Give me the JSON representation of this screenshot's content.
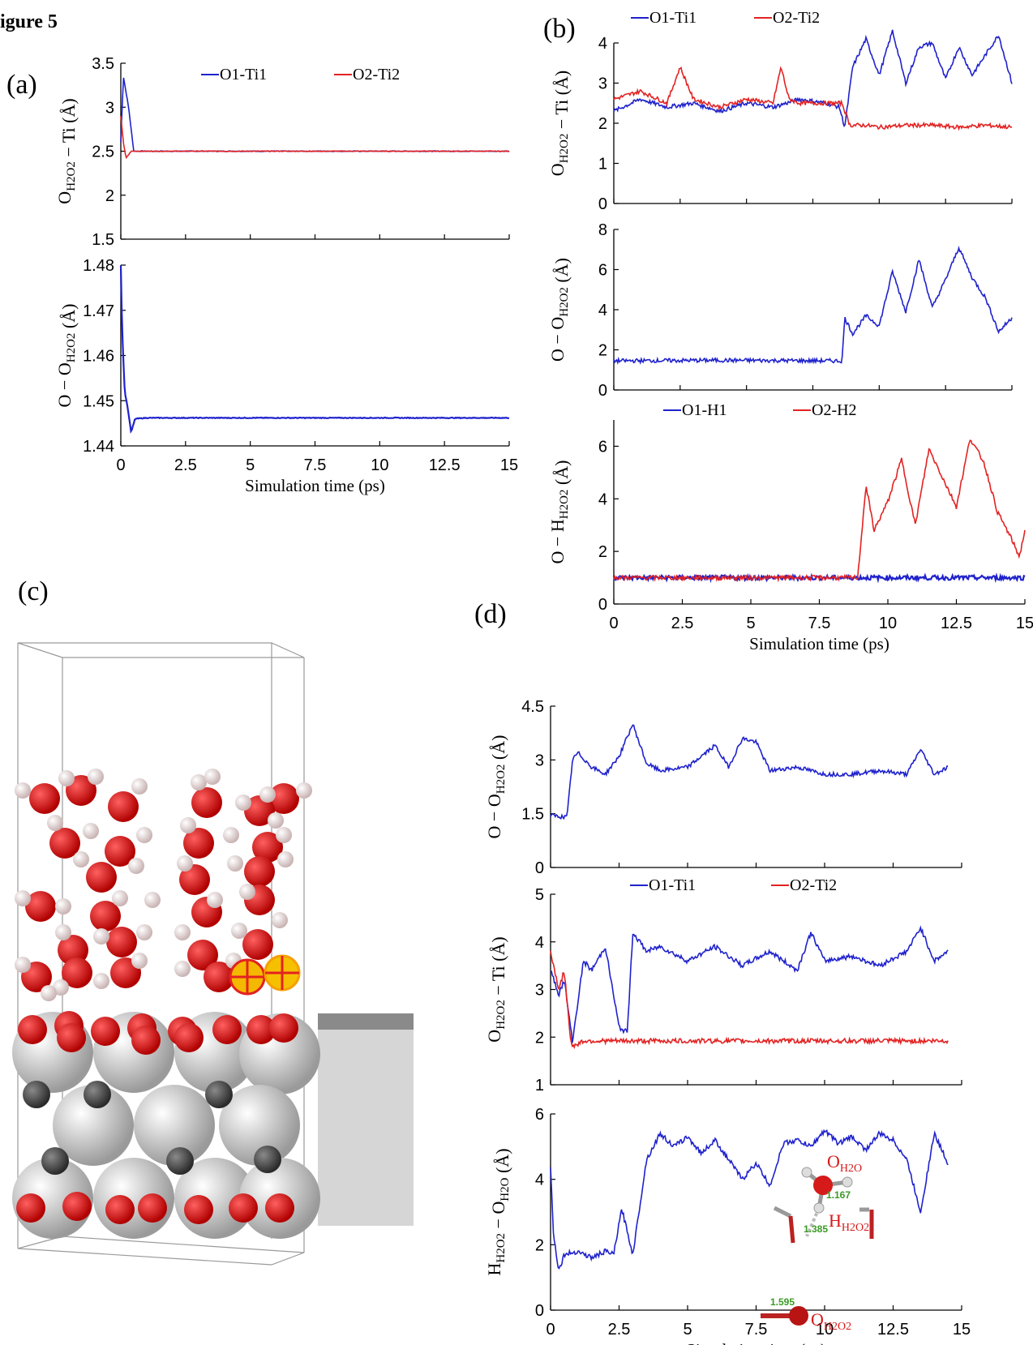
{
  "figure_title": "igure 5",
  "panel_labels": {
    "a": "(a)",
    "b": "(b)",
    "c": "(c)",
    "d": "(d)"
  },
  "colors": {
    "blue": "#1f22cc",
    "red": "#e32222",
    "water_o": "#d61a1a",
    "water_h": "#f3dede",
    "ti": "#c9c9c9",
    "c_dark": "#454545",
    "marker": "#f5b800"
  },
  "molecule_labels": {
    "o_h2o": "OH2O",
    "h_h2o2": "HH2O2",
    "o_h2o2": "OH2O2",
    "d1": "1.167",
    "d2": "1.385",
    "d3": "1.595"
  },
  "chart_data": [
    {
      "id": "a-top",
      "type": "line",
      "panel": "(a)",
      "ylabel": "O_H2O2 − Ti (Å)",
      "xlabel": "",
      "xlim": [
        0,
        15
      ],
      "ylim": [
        1.5,
        3.5
      ],
      "yticks": [
        "1.5",
        "2",
        "2.5",
        "3",
        "3.5"
      ],
      "legend": [
        {
          "name": "O1-Ti1",
          "color": "#1f22cc"
        },
        {
          "name": "O2-Ti2",
          "color": "#e32222"
        }
      ],
      "series": [
        {
          "name": "O1-Ti1",
          "color": "#1f22cc",
          "x": [
            0,
            0.1,
            0.3,
            0.5,
            15
          ],
          "y": [
            2.6,
            3.35,
            3.0,
            2.5,
            2.5
          ]
        },
        {
          "name": "O2-Ti2",
          "color": "#e32222",
          "x": [
            0,
            0.1,
            0.2,
            0.4,
            15
          ],
          "y": [
            2.9,
            2.6,
            2.42,
            2.5,
            2.5
          ]
        }
      ]
    },
    {
      "id": "a-bot",
      "type": "line",
      "panel": "(a)",
      "ylabel": "O − O_H2O2 (Å)",
      "xlabel": "Simulation time (ps)",
      "xlim": [
        0,
        15
      ],
      "ylim": [
        1.44,
        1.48
      ],
      "yticks": [
        "1.44",
        "1.45",
        "1.46",
        "1.47",
        "1.48"
      ],
      "xticks": [
        "0",
        "2.5",
        "5",
        "7.5",
        "10",
        "12.5",
        "15"
      ],
      "series": [
        {
          "name": "O-O",
          "color": "#1f22cc",
          "x": [
            0,
            0.05,
            0.15,
            0.25,
            0.4,
            0.55,
            1,
            15
          ],
          "y": [
            1.48,
            1.466,
            1.452,
            1.449,
            1.443,
            1.446,
            1.4462,
            1.4462
          ]
        }
      ]
    },
    {
      "id": "b-top",
      "type": "line",
      "panel": "(b)",
      "ylabel": "O_H2O2 − Ti (Å)",
      "xlabel": "",
      "xlim": [
        0,
        15
      ],
      "ylim": [
        0,
        4
      ],
      "yticks": [
        "0",
        "1",
        "2",
        "3",
        "4"
      ],
      "legend": [
        {
          "name": "O1-Ti1",
          "color": "#1f22cc"
        },
        {
          "name": "O2-Ti2",
          "color": "#e32222"
        }
      ],
      "series": [
        {
          "name": "O1-Ti1",
          "color": "#1f22cc",
          "x": [
            0,
            1,
            2,
            3,
            4,
            5,
            6,
            7,
            8,
            8.5,
            8.7,
            9.0,
            9.5,
            10,
            10.5,
            11,
            11.5,
            12,
            12.5,
            13,
            13.5,
            14,
            14.5,
            15
          ],
          "y": [
            2.3,
            2.6,
            2.4,
            2.5,
            2.3,
            2.5,
            2.4,
            2.6,
            2.5,
            2.4,
            1.9,
            3.4,
            4.1,
            3.2,
            4.3,
            3.0,
            3.9,
            4.0,
            3.1,
            3.9,
            3.2,
            3.7,
            4.2,
            3.0
          ]
        },
        {
          "name": "O2-Ti2",
          "color": "#e32222",
          "x": [
            0,
            1,
            2,
            2.5,
            3,
            4,
            5,
            6,
            6.3,
            6.6,
            7,
            8,
            8.6,
            8.9,
            9.5,
            10,
            11,
            12,
            13,
            14,
            15
          ],
          "y": [
            2.6,
            2.8,
            2.5,
            3.4,
            2.6,
            2.4,
            2.6,
            2.5,
            3.4,
            2.6,
            2.5,
            2.5,
            2.5,
            1.95,
            1.95,
            1.9,
            1.95,
            1.95,
            1.9,
            1.95,
            1.9
          ]
        }
      ]
    },
    {
      "id": "b-mid",
      "type": "line",
      "panel": "(b)",
      "ylabel": "O − O_H2O2 (Å)",
      "xlabel": "",
      "xlim": [
        0,
        15
      ],
      "ylim": [
        0,
        8
      ],
      "yticks": [
        "0",
        "2",
        "4",
        "6",
        "8"
      ],
      "series": [
        {
          "name": "O-O",
          "color": "#1f22cc",
          "x": [
            0,
            4,
            8.6,
            8.7,
            9.0,
            9.5,
            10,
            10.5,
            11,
            11.5,
            12,
            12.5,
            13,
            13.5,
            14,
            14.5,
            15
          ],
          "y": [
            1.45,
            1.48,
            1.45,
            3.6,
            2.8,
            3.7,
            3.2,
            5.9,
            3.9,
            6.5,
            4.1,
            5.5,
            7.1,
            5.6,
            4.6,
            2.9,
            3.6
          ]
        }
      ]
    },
    {
      "id": "b-bot",
      "type": "line",
      "panel": "(b)",
      "ylabel": "O − H_H2O2 (Å)",
      "xlabel": "Simulation time (ps)",
      "xlim": [
        0,
        15
      ],
      "ylim": [
        0,
        7
      ],
      "yticks": [
        "0",
        "2",
        "4",
        "6"
      ],
      "xticks": [
        "0",
        "2.5",
        "5",
        "7.5",
        "10",
        "12.5",
        "15"
      ],
      "legend": [
        {
          "name": "O1-H1",
          "color": "#1f22cc"
        },
        {
          "name": "O2-H2",
          "color": "#e32222"
        }
      ],
      "series": [
        {
          "name": "O1-H1",
          "color": "#1f22cc",
          "x": [
            0,
            15
          ],
          "y": [
            1.0,
            1.0
          ]
        },
        {
          "name": "O2-H2",
          "color": "#e32222",
          "x": [
            0,
            8.9,
            9.2,
            9.5,
            10,
            10.5,
            11,
            11.5,
            12,
            12.5,
            13,
            13.5,
            14,
            14.5,
            14.8,
            15
          ],
          "y": [
            1.0,
            1.0,
            4.5,
            2.8,
            3.9,
            5.5,
            3.0,
            5.9,
            4.8,
            3.7,
            6.3,
            5.4,
            3.5,
            2.5,
            1.8,
            2.8
          ]
        }
      ]
    },
    {
      "id": "d-top",
      "type": "line",
      "panel": "(d)",
      "ylabel": "O − O_H2O2 (Å)",
      "xlabel": "",
      "xlim": [
        0,
        15
      ],
      "ylim": [
        0,
        4.5
      ],
      "yticks": [
        "0",
        "1.5",
        "3",
        "4.5"
      ],
      "series": [
        {
          "name": "O-O",
          "color": "#1f22cc",
          "x": [
            0,
            0.6,
            0.8,
            1.0,
            1.5,
            2,
            2.5,
            3,
            3.5,
            4,
            5,
            6,
            6.5,
            7,
            7.5,
            8,
            9,
            10,
            11,
            12,
            13,
            13.5,
            14,
            14.5
          ],
          "y": [
            1.45,
            1.4,
            3.0,
            3.2,
            2.8,
            2.6,
            3.1,
            4.0,
            2.9,
            2.7,
            2.8,
            3.4,
            2.8,
            3.6,
            3.5,
            2.7,
            2.8,
            2.6,
            2.6,
            2.7,
            2.6,
            3.3,
            2.6,
            2.8
          ]
        }
      ]
    },
    {
      "id": "d-mid",
      "type": "line",
      "panel": "(d)",
      "ylabel": "O_H2O2 − Ti (Å)",
      "xlabel": "",
      "xlim": [
        0,
        15
      ],
      "ylim": [
        1,
        5
      ],
      "yticks": [
        "1",
        "2",
        "3",
        "4",
        "5"
      ],
      "legend": [
        {
          "name": "O1-Ti1",
          "color": "#1f22cc"
        },
        {
          "name": "O2-Ti2",
          "color": "#e32222"
        }
      ],
      "series": [
        {
          "name": "O1-Ti1",
          "color": "#1f22cc",
          "x": [
            0,
            0.3,
            0.5,
            0.8,
            1.2,
            1.5,
            2,
            2.5,
            2.8,
            3.0,
            3.5,
            4,
            5,
            6,
            7,
            8,
            9,
            9.5,
            10,
            11,
            12,
            13,
            13.5,
            14,
            14.5
          ],
          "y": [
            3.4,
            2.9,
            3.2,
            1.9,
            3.6,
            3.4,
            3.9,
            2.2,
            2.1,
            4.2,
            3.8,
            3.9,
            3.6,
            3.9,
            3.5,
            3.8,
            3.4,
            4.2,
            3.6,
            3.7,
            3.5,
            3.8,
            4.3,
            3.6,
            3.8
          ]
        },
        {
          "name": "O2-Ti2",
          "color": "#e32222",
          "x": [
            0,
            0.3,
            0.5,
            0.7,
            0.8,
            1.2,
            3,
            6,
            9,
            12,
            14.5
          ],
          "y": [
            3.8,
            3.0,
            3.4,
            2.1,
            1.8,
            1.92,
            1.92,
            1.92,
            1.92,
            1.92,
            1.92
          ]
        }
      ]
    },
    {
      "id": "d-bot",
      "type": "line",
      "panel": "(d)",
      "ylabel": "H_H2O2 − O_H2O (Å)",
      "xlabel": "Simulation time (ps)",
      "xlim": [
        0,
        15
      ],
      "ylim": [
        0,
        6
      ],
      "yticks": [
        "0",
        "2",
        "4",
        "6"
      ],
      "xticks": [
        "0",
        "2.5",
        "5",
        "7.5",
        "10",
        "12.5",
        "15"
      ],
      "series": [
        {
          "name": "H-O",
          "color": "#1f22cc",
          "x": [
            0,
            0.1,
            0.3,
            0.5,
            1,
            1.5,
            2,
            2.3,
            2.6,
            3.0,
            3.5,
            4,
            4.5,
            5,
            5.5,
            6,
            6.5,
            7,
            7.5,
            8,
            8.5,
            9,
            9.5,
            10,
            10.5,
            11,
            11.5,
            12,
            12.5,
            13,
            13.5,
            14,
            14.5
          ],
          "y": [
            4.4,
            2.4,
            1.2,
            1.7,
            1.8,
            1.6,
            1.8,
            1.7,
            3.1,
            1.7,
            4.6,
            5.4,
            5.0,
            5.3,
            4.8,
            5.2,
            4.6,
            4.0,
            4.5,
            3.8,
            5.1,
            5.2,
            5.0,
            5.5,
            5.1,
            5.3,
            4.9,
            5.4,
            5.2,
            4.6,
            3.0,
            5.4,
            4.5
          ]
        }
      ]
    }
  ]
}
